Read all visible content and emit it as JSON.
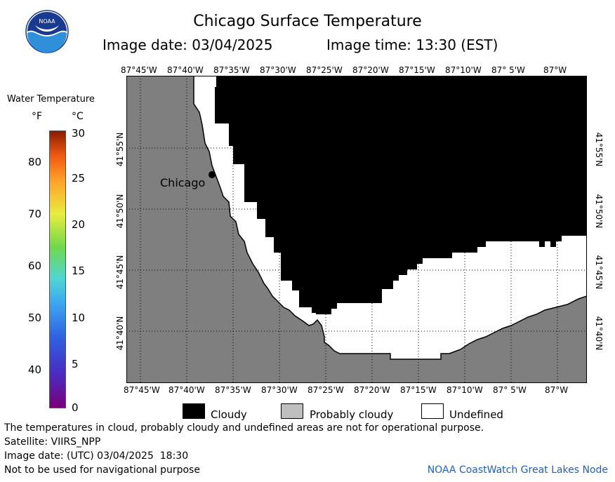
{
  "header": {
    "title": "Chicago Surface Temperature",
    "image_date": "Image date: 03/04/2025",
    "image_time": "Image time: 13:30 (EST)",
    "logo_text": "NOAA"
  },
  "colorbar": {
    "title": "Water Temperature",
    "unit_f": "°F",
    "unit_c": "°C",
    "f_ticks": [
      "80",
      "70",
      "60",
      "50",
      "40"
    ],
    "c_ticks": [
      "30",
      "25",
      "20",
      "15",
      "10",
      "5",
      "0"
    ]
  },
  "map": {
    "lon_labels": [
      "87°45'W",
      "87°40'W",
      "87°35'W",
      "87°30'W",
      "87°25'W",
      "87°20'W",
      "87°15'W",
      "87°10'W",
      "87° 5'W",
      "87°W"
    ],
    "lat_labels": [
      "41°55'N",
      "41°50'N",
      "41°45'N",
      "41°40'N"
    ],
    "city_label": "Chicago",
    "colors": {
      "land": "#7f7f7f",
      "cloudy": "#000000",
      "undefined": "#ffffff",
      "probably_cloudy": "#bfbfbf"
    }
  },
  "legend": [
    {
      "label": "Cloudy",
      "color": "#000000"
    },
    {
      "label": "Probably cloudy",
      "color": "#bfbfbf"
    },
    {
      "label": "Undefined",
      "color": "#ffffff"
    }
  ],
  "footer": {
    "note": "The temperatures in cloud, probably cloudy and undefined areas are not for operational purpose.",
    "satellite": "Satellite: VIIRS_NPP",
    "utc_date": "Image date: (UTC) 03/04/2025  18:30",
    "nav_warning": "Not to be used for navigational purpose",
    "credit": "NOAA CoastWatch Great Lakes Node"
  }
}
